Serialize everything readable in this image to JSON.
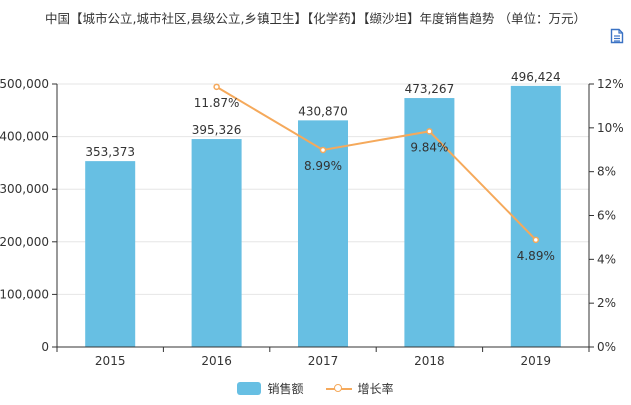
{
  "title": "中国【城市公立,城市社区,县级公立,乡镇卫生】【化学药】【缬沙坦】年度销售趋势 （单位：万元）",
  "icons": {
    "toolbar": "document-icon"
  },
  "colors": {
    "bar": "#67bfe3",
    "line": "#f5a95b",
    "axis": "#333333",
    "grid": "#e6e6e6"
  },
  "legend": [
    {
      "label": "销售额",
      "kind": "bar"
    },
    {
      "label": "增长率",
      "kind": "line"
    }
  ],
  "chart_data": {
    "type": "bar",
    "categories": [
      "2015",
      "2016",
      "2017",
      "2018",
      "2019"
    ],
    "series": [
      {
        "name": "销售额",
        "type": "bar",
        "axis": "left",
        "values": [
          353373,
          395326,
          430870,
          473267,
          496424
        ],
        "labels": [
          "353,373",
          "395,326",
          "430,870",
          "473,267",
          "496,424"
        ]
      },
      {
        "name": "增长率",
        "type": "line",
        "axis": "right",
        "values": [
          null,
          11.87,
          8.99,
          9.84,
          4.89
        ],
        "labels": [
          "",
          "11.87%",
          "8.99%",
          "9.84%",
          "4.89%"
        ]
      }
    ],
    "y_left": {
      "ylim": [
        0,
        500000
      ],
      "ticks": [
        "0",
        "100,000",
        "200,000",
        "300,000",
        "400,000",
        "500,000"
      ]
    },
    "y_right": {
      "ylim": [
        0,
        12
      ],
      "ticks": [
        "0%",
        "2%",
        "4%",
        "6%",
        "8%",
        "10%",
        "12%"
      ]
    },
    "grid": true,
    "legend_position": "bottom"
  }
}
